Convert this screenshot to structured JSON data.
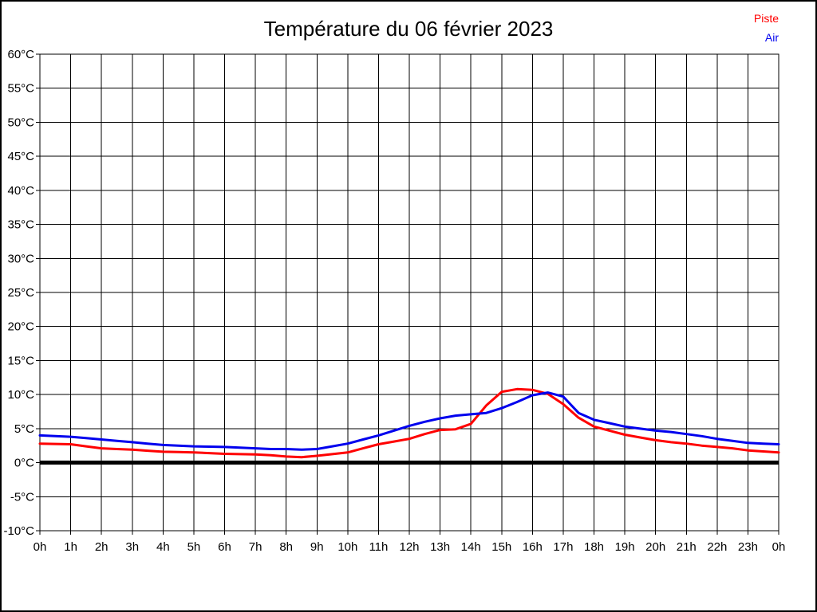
{
  "title": "Température du 06 février 2023",
  "legend": {
    "items": [
      {
        "label": "Piste",
        "color": "#ff0000"
      },
      {
        "label": "Air",
        "color": "#0000ee"
      }
    ]
  },
  "chart_data": {
    "type": "line",
    "title": "Température du 06 février 2023",
    "xlabel": "",
    "ylabel": "",
    "x_unit": "hour",
    "y_unit": "°C",
    "xlim": [
      0,
      24
    ],
    "ylim": [
      -10,
      60
    ],
    "grid": true,
    "zero_line": true,
    "legend_position": "top-right",
    "x_ticks": [
      0,
      1,
      2,
      3,
      4,
      5,
      6,
      7,
      8,
      9,
      10,
      11,
      12,
      13,
      14,
      15,
      16,
      17,
      18,
      19,
      20,
      21,
      22,
      23,
      24
    ],
    "x_tick_labels": [
      "0h",
      "1h",
      "2h",
      "3h",
      "4h",
      "5h",
      "6h",
      "7h",
      "8h",
      "9h",
      "10h",
      "11h",
      "12h",
      "13h",
      "14h",
      "15h",
      "16h",
      "17h",
      "18h",
      "19h",
      "20h",
      "21h",
      "22h",
      "23h",
      "0h"
    ],
    "y_ticks": [
      -10,
      -5,
      0,
      5,
      10,
      15,
      20,
      25,
      30,
      35,
      40,
      45,
      50,
      55,
      60
    ],
    "y_tick_labels": [
      "-10°C",
      "-5°C",
      "0°C",
      "5°C",
      "10°C",
      "15°C",
      "20°C",
      "25°C",
      "30°C",
      "35°C",
      "40°C",
      "45°C",
      "50°C",
      "55°C",
      "60°C"
    ],
    "x": [
      0,
      0.5,
      1,
      1.5,
      2,
      2.5,
      3,
      3.5,
      4,
      4.5,
      5,
      5.5,
      6,
      6.5,
      7,
      7.5,
      8,
      8.5,
      9,
      9.5,
      10,
      10.5,
      11,
      11.5,
      12,
      12.5,
      13,
      13.5,
      14,
      14.5,
      15,
      15.5,
      16,
      16.5,
      17,
      17.5,
      18,
      18.5,
      19,
      19.5,
      20,
      20.5,
      21,
      21.5,
      22,
      22.5,
      23,
      23.5,
      24
    ],
    "series": [
      {
        "name": "Piste",
        "color": "#ff0000",
        "values": [
          2.8,
          2.75,
          2.7,
          2.4,
          2.1,
          2.0,
          1.9,
          1.75,
          1.6,
          1.55,
          1.5,
          1.4,
          1.3,
          1.25,
          1.2,
          1.1,
          0.9,
          0.8,
          1.0,
          1.25,
          1.5,
          2.1,
          2.7,
          3.1,
          3.5,
          4.2,
          4.8,
          4.9,
          5.7,
          8.4,
          10.4,
          10.8,
          10.7,
          10.1,
          8.6,
          6.6,
          5.3,
          4.7,
          4.1,
          3.7,
          3.3,
          3.0,
          2.8,
          2.5,
          2.3,
          2.1,
          1.8,
          1.65,
          1.5
        ]
      },
      {
        "name": "Air",
        "color": "#0000ee",
        "values": [
          4.0,
          3.9,
          3.8,
          3.6,
          3.4,
          3.2,
          3.0,
          2.8,
          2.6,
          2.5,
          2.4,
          2.35,
          2.3,
          2.2,
          2.1,
          2.0,
          2.0,
          1.9,
          2.0,
          2.4,
          2.8,
          3.4,
          4.0,
          4.7,
          5.4,
          6.0,
          6.5,
          6.9,
          7.1,
          7.3,
          8.0,
          8.9,
          9.9,
          10.3,
          9.7,
          7.3,
          6.3,
          5.8,
          5.3,
          5.0,
          4.7,
          4.5,
          4.2,
          3.9,
          3.5,
          3.2,
          2.9,
          2.8,
          2.7
        ]
      }
    ]
  }
}
